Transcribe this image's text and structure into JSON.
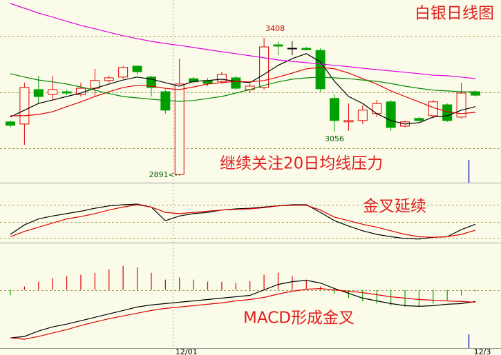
{
  "chart_data": [
    {
      "type": "candlestick",
      "title": "白银日线图",
      "annotation": "继续关注20日均线压力",
      "categories": [
        null,
        null,
        null,
        null,
        null,
        null,
        null,
        null,
        null,
        null,
        null,
        null,
        "12/01",
        null,
        null,
        null,
        null,
        null,
        null,
        null,
        null,
        null,
        null,
        null,
        null,
        null,
        null,
        null,
        null,
        null,
        null,
        null,
        null,
        "12/3"
      ],
      "open": [
        3093,
        3085,
        3214,
        3196,
        3206,
        3196,
        3219,
        3248,
        3261,
        3302,
        3261,
        3206,
        2896,
        3255,
        3248,
        3245,
        3258,
        3214,
        3222,
        3382,
        3369,
        3369,
        3361,
        3181,
        3093,
        3098,
        3124,
        3168,
        3077,
        3106,
        3116,
        3157,
        3111,
        3206
      ],
      "high": [
        3098,
        3240,
        3266,
        3266,
        3214,
        3240,
        3292,
        3266,
        3302,
        3302,
        3266,
        3214,
        3330,
        3261,
        3258,
        3281,
        3266,
        3235,
        3408,
        3395,
        3395,
        3374,
        3369,
        3196,
        3162,
        3157,
        3175,
        3175,
        3098,
        3111,
        3175,
        3162,
        3240,
        3211
      ],
      "low": [
        3072,
        3007,
        3162,
        3175,
        3193,
        3188,
        3188,
        3240,
        3255,
        3271,
        3188,
        3124,
        2891,
        3237,
        3227,
        3237,
        3214,
        3201,
        3214,
        3343,
        3343,
        3361,
        3206,
        3056,
        3059,
        3085,
        3111,
        3059,
        3072,
        3093,
        3106,
        3093,
        3106,
        3188
      ],
      "close": [
        3080,
        3222,
        3188,
        3214,
        3201,
        3219,
        3248,
        3258,
        3297,
        3281,
        3222,
        3137,
        3235,
        3243,
        3237,
        3271,
        3219,
        3227,
        3374,
        3377,
        3369,
        3364,
        3217,
        3098,
        3098,
        3137,
        3162,
        3072,
        3093,
        3098,
        3168,
        3098,
        3201,
        3193
      ],
      "labeled_highs": [
        18
      ],
      "labeled_lows": [
        12,
        23
      ],
      "low_labels": [
        null,
        null,
        null,
        null,
        null,
        null,
        null,
        null,
        null,
        null,
        null,
        null,
        "2891<-",
        null,
        null,
        null,
        null,
        null,
        null,
        null,
        null,
        null,
        null,
        null,
        null,
        null,
        null,
        null,
        null,
        null,
        null,
        null,
        null,
        null
      ],
      "up_color": "#e00000",
      "down_color": "#00a000",
      "doji_color": "#000000",
      "ylim": [
        2865,
        3550
      ],
      "yticks": [
        2994,
        3204,
        3416
      ],
      "grid": true,
      "series": [
        {
          "color": "#000000",
          "values": [
            3111,
            3137,
            3162,
            3175,
            3188,
            3201,
            3219,
            3235,
            3250,
            3261,
            3253,
            3240,
            3227,
            3245,
            3248,
            3253,
            3245,
            3240,
            3271,
            3305,
            3330,
            3349,
            3318,
            3245,
            3188,
            3162,
            3124,
            3098,
            3085,
            3090,
            3111,
            3116,
            3137,
            3150
          ]
        },
        {
          "color": "#e00000",
          "values": [
            3116,
            3116,
            3121,
            3131,
            3150,
            3168,
            3188,
            3206,
            3222,
            3230,
            3227,
            3219,
            3214,
            3224,
            3235,
            3240,
            3245,
            3243,
            3248,
            3261,
            3276,
            3292,
            3297,
            3292,
            3276,
            3255,
            3235,
            3209,
            3188,
            3168,
            3147,
            3131,
            3124,
            3129
          ]
        },
        {
          "color": "#008800",
          "values": [
            3274,
            3261,
            3250,
            3243,
            3235,
            3224,
            3212,
            3199,
            3188,
            3183,
            3178,
            3173,
            3170,
            3173,
            3181,
            3188,
            3201,
            3214,
            3230,
            3243,
            3253,
            3258,
            3261,
            3258,
            3255,
            3250,
            3245,
            3237,
            3227,
            3219,
            3212,
            3209,
            3206,
            3206
          ]
        },
        {
          "color": "#e000e0",
          "values": [
            3537,
            3519,
            3501,
            3486,
            3470,
            3455,
            3442,
            3429,
            3416,
            3405,
            3395,
            3387,
            3380,
            3372,
            3364,
            3356,
            3349,
            3341,
            3333,
            3325,
            3320,
            3315,
            3310,
            3305,
            3300,
            3294,
            3289,
            3284,
            3279,
            3274,
            3268,
            3266,
            3261,
            3255
          ]
        }
      ]
    },
    {
      "type": "line",
      "annotation": "金叉延续",
      "ylim": [
        0,
        100
      ],
      "yticks": [
        8,
        35,
        64
      ],
      "grid": true,
      "series": [
        {
          "color": "#000000",
          "values": [
            14,
            30,
            40,
            45,
            49,
            53,
            58,
            62,
            64,
            65,
            60,
            37,
            45,
            49,
            51,
            55,
            57,
            58,
            60,
            62,
            64,
            64,
            51,
            37,
            28,
            20,
            14,
            10,
            7,
            6,
            9,
            10,
            22,
            31
          ]
        },
        {
          "color": "#e00000",
          "values": [
            10,
            19,
            26,
            33,
            40,
            44,
            49,
            55,
            60,
            64,
            60,
            51,
            49,
            51,
            53,
            55,
            56,
            57,
            59,
            62,
            63,
            63,
            55,
            43,
            37,
            31,
            26,
            20,
            14,
            10,
            9,
            10,
            14,
            21
          ]
        }
      ]
    },
    {
      "type": "macd",
      "annotation": "MACD形成金叉",
      "ylim": [
        -85,
        68
      ],
      "yticks": [
        0
      ],
      "grid": true,
      "up_color": "#e00000",
      "down_color": "#00a000",
      "histogram": [
        -8,
        5,
        12,
        17,
        20,
        22,
        25,
        30,
        35,
        33,
        25,
        15,
        18,
        15,
        12,
        12,
        10,
        13,
        22,
        25,
        20,
        15,
        5,
        -5,
        -12,
        -17,
        -20,
        -23,
        -25,
        -24,
        -20,
        -15,
        -8,
        -2
      ],
      "series": [
        {
          "color": "#000000",
          "values": [
            -70,
            -68,
            -60,
            -54,
            -50,
            -45,
            -40,
            -35,
            -30,
            -25,
            -22,
            -20,
            -18,
            -16,
            -14,
            -12,
            -10,
            -8,
            0,
            8,
            12,
            14,
            10,
            2,
            -5,
            -12,
            -16,
            -20,
            -23,
            -24,
            -23,
            -21,
            -20,
            -17
          ]
        },
        {
          "color": "#e00000",
          "values": [
            -70,
            -72,
            -68,
            -63,
            -58,
            -52,
            -47,
            -42,
            -38,
            -34,
            -30,
            -27,
            -25,
            -23,
            -21,
            -19,
            -16,
            -14,
            -11,
            -6,
            -2,
            1,
            2,
            0,
            -2,
            -4,
            -7,
            -10,
            -12,
            -14,
            -15,
            -16,
            -17,
            -18
          ]
        }
      ]
    }
  ]
}
